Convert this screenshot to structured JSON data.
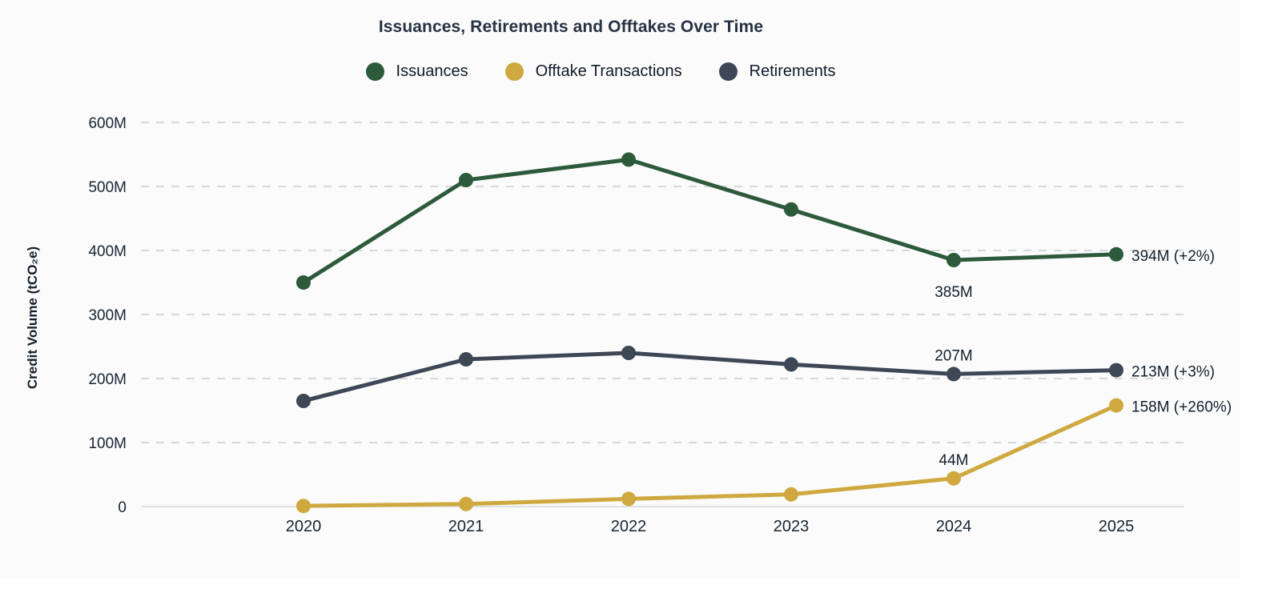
{
  "chart_data": {
    "type": "line",
    "title": "Issuances, Retirements and Offtakes Over Time",
    "ylabel": "Credit Volume (tCO₂e)",
    "xlabel": "",
    "x": [
      "2020",
      "2021",
      "2022",
      "2023",
      "2024",
      "2025"
    ],
    "ylim": [
      0,
      650
    ],
    "grid": "horizontal-dashed",
    "legend_position": "top",
    "y_axis": {
      "ticks": [
        {
          "value": 600,
          "label": "600M"
        },
        {
          "value": 500,
          "label": "500M"
        },
        {
          "value": 400,
          "label": "400M"
        },
        {
          "value": 300,
          "label": "300M"
        },
        {
          "value": 200,
          "label": "200M"
        },
        {
          "value": 100,
          "label": "100M"
        },
        {
          "value": 0,
          "label": "0"
        }
      ],
      "unit": "M tCO2e"
    },
    "series": [
      {
        "name": "Issuances",
        "color": "#2e5a3c",
        "values": [
          350,
          510,
          542,
          464,
          385,
          394
        ],
        "point_labels": [
          {
            "x": "2024",
            "text": "385M",
            "position": "below"
          },
          {
            "x": "2025",
            "text": "394M (+2%)",
            "position": "right"
          }
        ]
      },
      {
        "name": "Offtake Transactions",
        "color": "#cfa93f",
        "values": [
          1,
          4,
          12,
          19,
          44,
          158
        ],
        "point_labels": [
          {
            "x": "2024",
            "text": "44M",
            "position": "above"
          },
          {
            "x": "2025",
            "text": "158M (+260%)",
            "position": "right"
          }
        ]
      },
      {
        "name": "Retirements",
        "color": "#3d4756",
        "values": [
          165,
          230,
          240,
          222,
          207,
          213
        ],
        "point_labels": [
          {
            "x": "2024",
            "text": "207M",
            "position": "above"
          },
          {
            "x": "2025",
            "text": "213M (+3%)",
            "position": "right"
          }
        ]
      }
    ],
    "colors": {
      "background": "#fafbfa",
      "grid_line": "#c9ccd0",
      "axis_line": "#d6d8d9",
      "tick_text": "#1b2433",
      "label_text": "#15202e",
      "title_text": "#273243"
    }
  }
}
